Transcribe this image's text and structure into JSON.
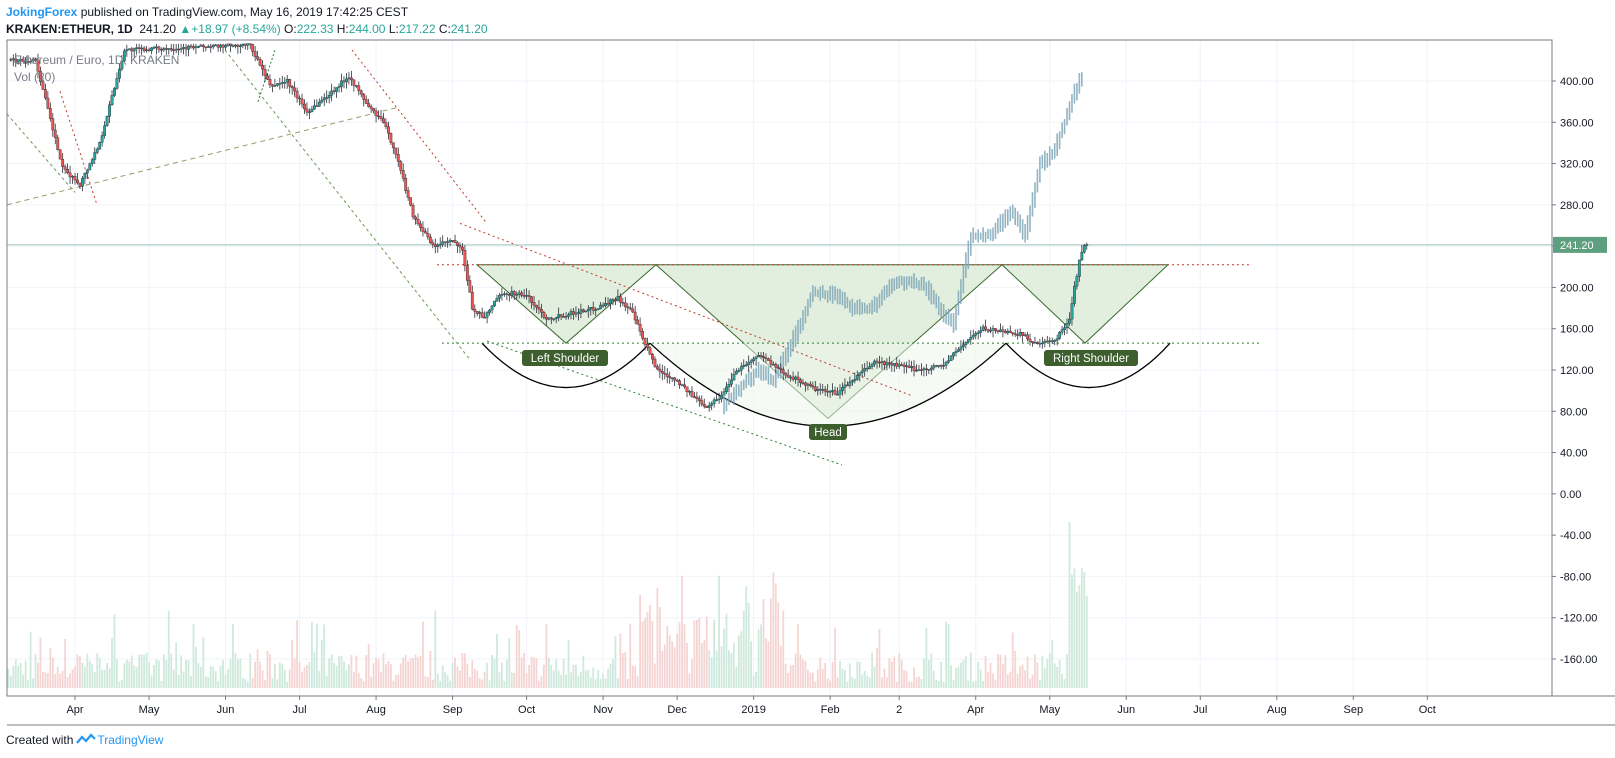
{
  "header": {
    "author": "JokingForex",
    "published_text": "published on TradingView.com, May 16, 2019 17:42:25 CEST",
    "symbol": "KRAKEN:ETHEUR, 1D",
    "last": "241.20",
    "change": "+18.97 (+8.54%)",
    "o_label": "O:",
    "o_value": "222.33",
    "h_label": "H:",
    "h_value": "244.00",
    "l_label": "L:",
    "l_value": "217.22",
    "c_label": "C:",
    "c_value": "241.20"
  },
  "legend": {
    "series_title": "Ethereum / Euro, 1D, KRAKEN",
    "volume_title": "Vol (20)"
  },
  "footer": {
    "created_with": "Created with",
    "brand": "TradingView"
  },
  "colors": {
    "up": "#26a69a",
    "down": "#ef5350",
    "pattern_fill": "#d9ead3",
    "label_bg": "#3d5e2d",
    "price_tag": "#5d9f7e",
    "projection": "#7fa7b9"
  },
  "chart_data": {
    "type": "candlestick",
    "title": "Ethereum / Euro, 1D, KRAKEN",
    "ylim": [
      -180,
      430
    ],
    "y_ticks": [
      400,
      360,
      320,
      280,
      240,
      200,
      160,
      120,
      80,
      40,
      0,
      -40,
      -80,
      -120,
      -160
    ],
    "y_tick_labels": [
      "400.00",
      "360.00",
      "320.00",
      "280.00",
      "",
      "200.00",
      "160.00",
      "120.00",
      "80.00",
      "40.00",
      "0.00",
      "-40.00",
      "-80.00",
      "-120.00",
      "-160.00"
    ],
    "x_tick_labels": [
      "Apr",
      "May",
      "Jun",
      "Jul",
      "Aug",
      "Sep",
      "Oct",
      "Nov",
      "Dec",
      "2019",
      "Feb",
      "2",
      "Apr",
      "May",
      "Jun",
      "Jul",
      "Aug",
      "Sep",
      "Oct"
    ],
    "last_price": 241.2,
    "last_price_label": "241.20",
    "price_path": [
      [
        "2018-03-17",
        420
      ],
      [
        "2018-03-28",
        315
      ],
      [
        "2018-04-04",
        300
      ],
      [
        "2018-04-12",
        340
      ],
      [
        "2018-04-22",
        430
      ],
      [
        "2018-06-12",
        435
      ],
      [
        "2018-06-20",
        395
      ],
      [
        "2018-06-27",
        400
      ],
      [
        "2018-07-05",
        370
      ],
      [
        "2018-07-13",
        385
      ],
      [
        "2018-07-22",
        405
      ],
      [
        "2018-07-30",
        375
      ],
      [
        "2018-08-05",
        360
      ],
      [
        "2018-08-10",
        330
      ],
      [
        "2018-08-17",
        270
      ],
      [
        "2018-08-25",
        240
      ],
      [
        "2018-09-02",
        245
      ],
      [
        "2018-09-06",
        235
      ],
      [
        "2018-09-10",
        180
      ],
      [
        "2018-09-15",
        170
      ],
      [
        "2018-09-20",
        190
      ],
      [
        "2018-09-26",
        195
      ],
      [
        "2018-10-02",
        192
      ],
      [
        "2018-10-10",
        170
      ],
      [
        "2018-10-20",
        175
      ],
      [
        "2018-10-30",
        180
      ],
      [
        "2018-11-08",
        190
      ],
      [
        "2018-11-14",
        175
      ],
      [
        "2018-11-18",
        150
      ],
      [
        "2018-11-24",
        120
      ],
      [
        "2018-12-02",
        110
      ],
      [
        "2018-12-08",
        95
      ],
      [
        "2018-12-14",
        85
      ],
      [
        "2018-12-20",
        95
      ],
      [
        "2018-12-26",
        120
      ],
      [
        "2019-01-05",
        135
      ],
      [
        "2019-01-12",
        120
      ],
      [
        "2019-01-20",
        110
      ],
      [
        "2019-01-28",
        100
      ],
      [
        "2019-02-05",
        98
      ],
      [
        "2019-02-12",
        112
      ],
      [
        "2019-02-20",
        128
      ],
      [
        "2019-02-28",
        125
      ],
      [
        "2019-03-10",
        120
      ],
      [
        "2019-03-20",
        125
      ],
      [
        "2019-03-30",
        150
      ],
      [
        "2019-04-05",
        160
      ],
      [
        "2019-04-12",
        158
      ],
      [
        "2019-04-20",
        155
      ],
      [
        "2019-04-27",
        145
      ],
      [
        "2019-05-04",
        148
      ],
      [
        "2019-05-10",
        170
      ],
      [
        "2019-05-12",
        200
      ],
      [
        "2019-05-14",
        225
      ],
      [
        "2019-05-16",
        241
      ]
    ],
    "projection_path": [
      [
        "2018-12-20",
        85
      ],
      [
        "2018-12-28",
        105
      ],
      [
        "2019-01-04",
        120
      ],
      [
        "2019-01-10",
        110
      ],
      [
        "2019-01-18",
        150
      ],
      [
        "2019-01-26",
        195
      ],
      [
        "2019-02-03",
        193
      ],
      [
        "2019-02-11",
        180
      ],
      [
        "2019-02-19",
        180
      ],
      [
        "2019-02-27",
        205
      ],
      [
        "2019-03-07",
        205
      ],
      [
        "2019-03-13",
        200
      ],
      [
        "2019-03-18",
        180
      ],
      [
        "2019-03-24",
        165
      ],
      [
        "2019-03-31",
        250
      ],
      [
        "2019-04-08",
        250
      ],
      [
        "2019-04-16",
        275
      ],
      [
        "2019-04-22",
        250
      ],
      [
        "2019-04-28",
        320
      ],
      [
        "2019-05-03",
        330
      ],
      [
        "2019-05-08",
        360
      ],
      [
        "2019-05-12",
        390
      ],
      [
        "2019-05-14",
        400
      ]
    ],
    "necklines": {
      "upper": 222,
      "lower": 146
    },
    "pattern_labels": [
      "Left Shoulder",
      "Head",
      "Right Shoulder"
    ]
  }
}
